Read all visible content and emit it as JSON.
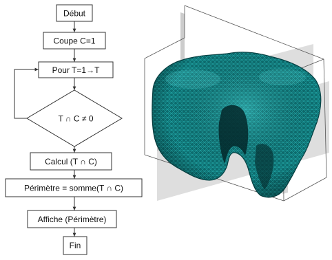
{
  "flowchart": {
    "start": "Début",
    "init": "Coupe C=1",
    "loop": "Pour T=1→T",
    "decision": "T ∩ C ≠ 0",
    "compute": "Calcul (T ∩ C)",
    "perimeter": "Périmètre = somme(T ∩ C)",
    "display": "Affiche (Périmètre)",
    "end": "Fin"
  },
  "colors": {
    "mesh_fill": "#0f7a7a",
    "mesh_highlight": "#27c7c7",
    "mesh_dark": "#063a3c",
    "plane": "#bdbdbd",
    "line": "#333333"
  }
}
